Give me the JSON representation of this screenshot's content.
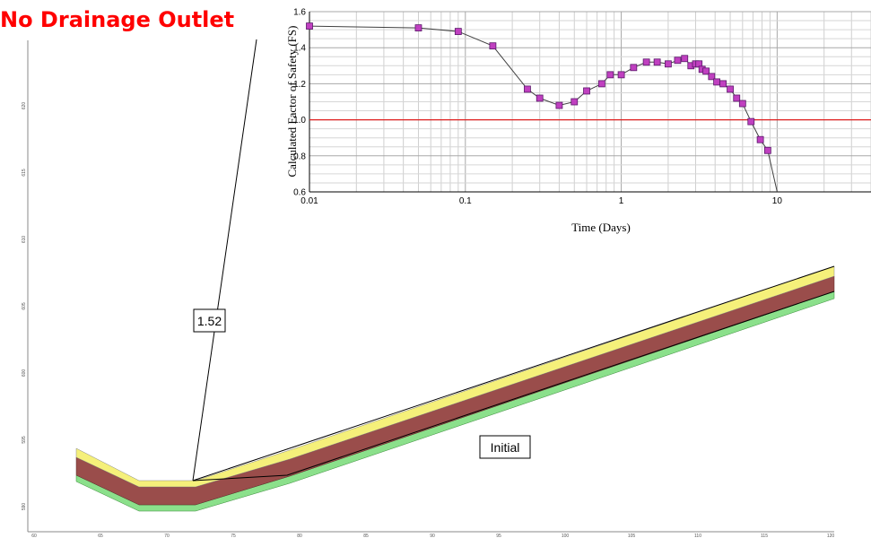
{
  "headline": "No Drainage Outlet",
  "annotations": {
    "fs_value": "1.52",
    "stage": "Initial"
  },
  "colors": {
    "title": "#ff0000",
    "layer_top": "#f5f07a",
    "layer_mid": "#9a4d4b",
    "layer_bottom": "#8be08b",
    "marker": "#c040c0",
    "threshold": "#e02020"
  },
  "cross_section": {
    "y_ticks": [
      "620",
      "615",
      "610",
      "605",
      "600",
      "595",
      "590"
    ],
    "x_ticks": [
      "60",
      "65",
      "70",
      "75",
      "80",
      "85",
      "90",
      "95",
      "100",
      "105",
      "110",
      "115",
      "120"
    ]
  },
  "chart_data": {
    "type": "scatter",
    "xlabel": "Time (Days)",
    "ylabel": "Calculated Factor of Safety (FS)",
    "x_scale": "log",
    "xlim": [
      0.01,
      40
    ],
    "ylim": [
      0.6,
      1.6
    ],
    "x_ticks": [
      "0.01",
      "0.1",
      "1",
      "10"
    ],
    "y_ticks": [
      "0.6",
      "0.8",
      "1.0",
      "1.2",
      "1.4",
      "1.6"
    ],
    "grid": true,
    "threshold_line": 1.0,
    "series": [
      {
        "x": [
          0.01,
          0.05,
          0.09,
          0.15,
          0.25,
          0.3,
          0.4,
          0.5,
          0.6,
          0.75,
          0.85,
          1.0,
          1.2,
          1.45,
          1.7,
          2.0,
          2.3,
          2.55,
          2.8,
          3.0,
          3.15,
          3.3,
          3.5,
          3.8,
          4.1,
          4.5,
          5.0,
          5.5,
          6.0,
          6.8,
          7.8,
          8.7,
          10
        ],
        "y": [
          1.52,
          1.51,
          1.49,
          1.41,
          1.17,
          1.12,
          1.08,
          1.1,
          1.16,
          1.2,
          1.25,
          1.25,
          1.29,
          1.32,
          1.32,
          1.31,
          1.33,
          1.34,
          1.3,
          1.31,
          1.31,
          1.28,
          1.27,
          1.24,
          1.21,
          1.2,
          1.17,
          1.12,
          1.09,
          0.99,
          0.89,
          0.83,
          0.6
        ]
      }
    ]
  }
}
